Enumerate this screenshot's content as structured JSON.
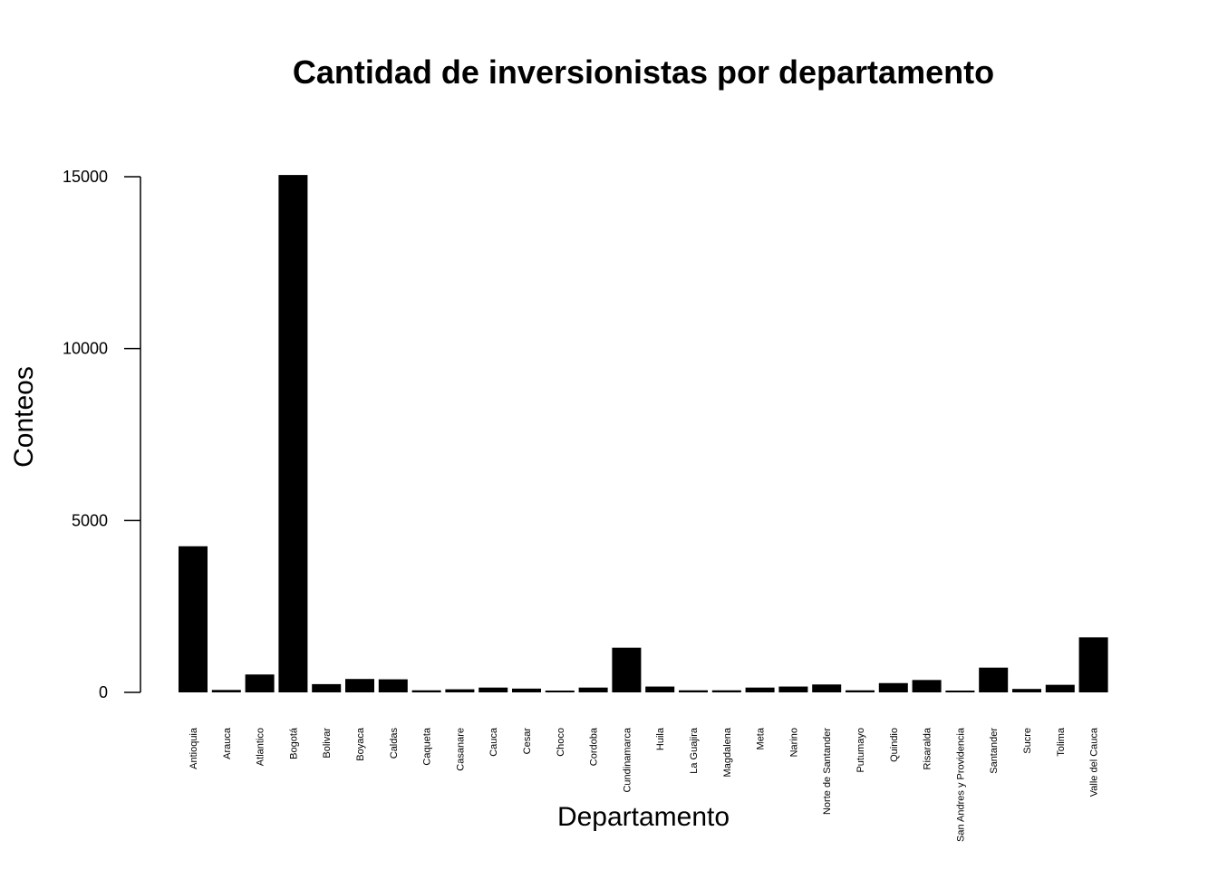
{
  "chart_data": {
    "type": "bar",
    "title": "Cantidad de inversionistas por departamento",
    "xlabel": "Departamento",
    "ylabel": "Conteos",
    "ylim": [
      0,
      15000
    ],
    "yticks": [
      "0",
      "5000",
      "10000",
      "15000"
    ],
    "bar_color": "#000000",
    "grid": false,
    "categories": [
      "Antioquia",
      "Arauca",
      "Atlantico",
      "Bogotá",
      "Bolivar",
      "Boyaca",
      "Caldas",
      "Caqueta",
      "Casanare",
      "Cauca",
      "Cesar",
      "Choco",
      "Cordoba",
      "Cundinamarca",
      "Huila",
      "La Guajira",
      "Magdalena",
      "Meta",
      "Narino",
      "Norte de Santander",
      "Putumayo",
      "Quindio",
      "Risaralda",
      "San Andres y Providencia",
      "Santander",
      "Sucre",
      "Tolima",
      "Valle del Cauca"
    ],
    "values": [
      4250,
      70,
      520,
      15050,
      240,
      390,
      380,
      60,
      90,
      140,
      110,
      30,
      140,
      1300,
      170,
      60,
      60,
      140,
      170,
      230,
      60,
      270,
      360,
      30,
      720,
      100,
      220,
      1600
    ]
  }
}
